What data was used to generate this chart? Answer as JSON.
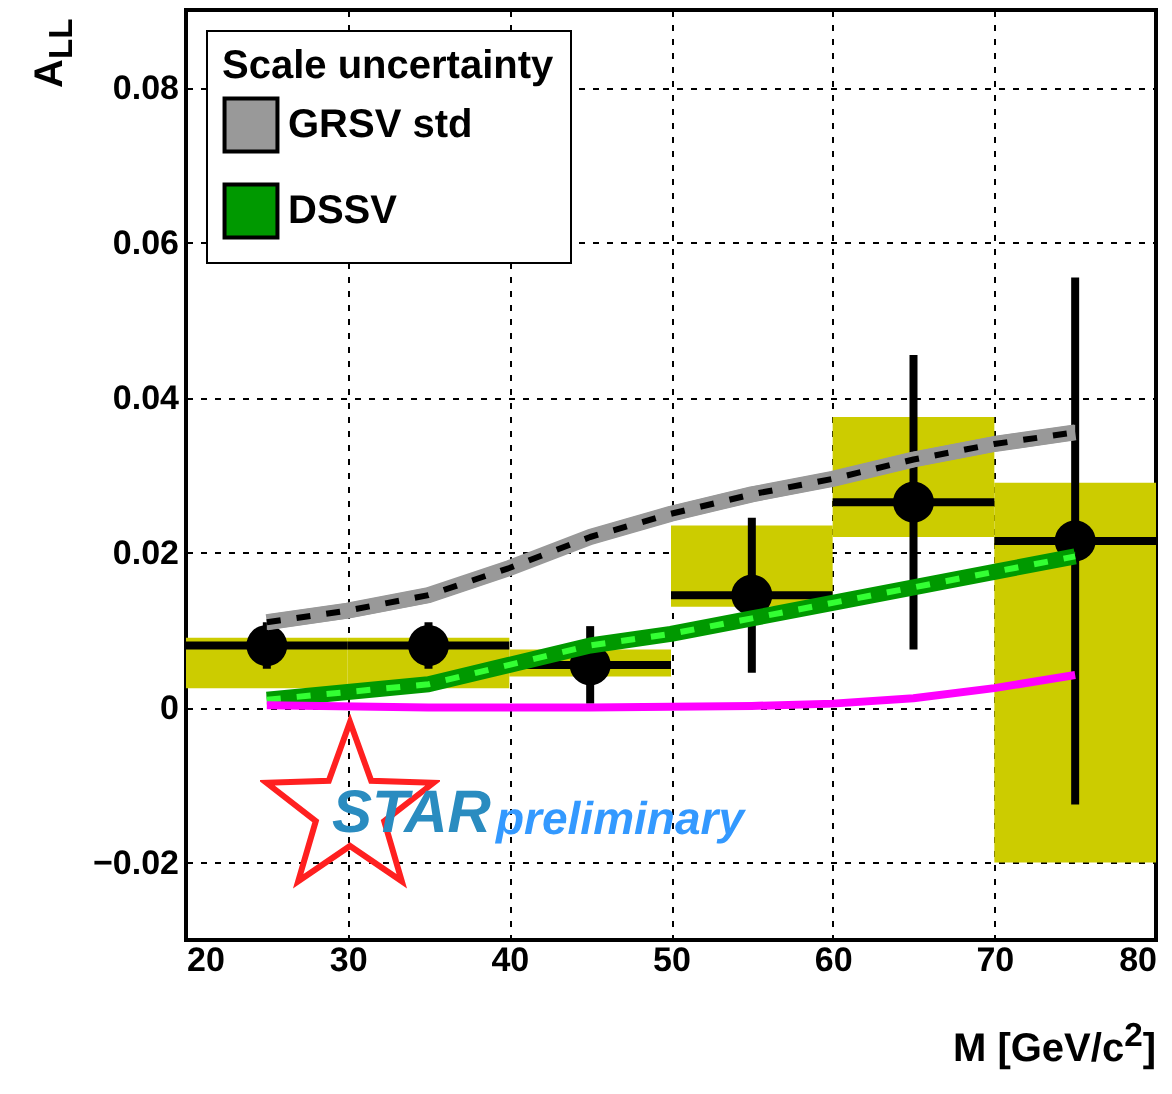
{
  "chart_data": {
    "type": "line",
    "xlabel": "M [GeV/c$^{2}$]",
    "ylabel": "A$_{LL}$",
    "legend_title": "Scale uncertainty",
    "xlim": [
      20,
      80
    ],
    "xticks": [
      20,
      30,
      40,
      50,
      60,
      70,
      80
    ],
    "ylim": [
      -0.03,
      0.09
    ],
    "yticks": [
      -0.02,
      0,
      0.02,
      0.04,
      0.06,
      0.08
    ],
    "grid": true,
    "legend": "top left",
    "annotations": [
      "STAR",
      "preliminary"
    ],
    "series": [
      {
        "type": "bar",
        "color": "#cccc00",
        "x": [
          25,
          35,
          45,
          55,
          65,
          75
        ],
        "base": [
          0.0025,
          0.0025,
          0.004,
          0.013,
          0.022,
          -0.02
        ],
        "values": [
          0.0065,
          0.0065,
          0.0035,
          0.0105,
          0.0155,
          0.049
        ]
      },
      {
        "name": "GRSV std",
        "color": "#999999",
        "x": [
          25,
          30,
          35,
          40,
          45,
          50,
          55,
          60,
          65,
          70,
          75
        ],
        "values": [
          0.011,
          0.0125,
          0.0145,
          0.018,
          0.022,
          0.025,
          0.0275,
          0.0295,
          0.032,
          0.034,
          0.0355
        ],
        "lower": [
          0.01,
          0.0115,
          0.0135,
          0.017,
          0.021,
          0.024,
          0.0265,
          0.0285,
          0.031,
          0.033,
          0.0345
        ],
        "upper": [
          0.012,
          0.0135,
          0.0155,
          0.019,
          0.023,
          0.026,
          0.0285,
          0.0305,
          0.033,
          0.035,
          0.0365
        ]
      },
      {
        "color": "#000000",
        "line_style": "dashed",
        "x": [
          25,
          30,
          35,
          40,
          45,
          50,
          55,
          60,
          65,
          70,
          75
        ],
        "values": [
          0.011,
          0.0125,
          0.0145,
          0.018,
          0.022,
          0.025,
          0.0275,
          0.0295,
          0.032,
          0.034,
          0.0355
        ]
      },
      {
        "name": "DSSV",
        "color": "#009900",
        "x": [
          25,
          30,
          35,
          40,
          45,
          50,
          55,
          60,
          65,
          70,
          75
        ],
        "values": [
          0.001,
          0.002,
          0.003,
          0.0055,
          0.008,
          0.0095,
          0.0115,
          0.0135,
          0.0155,
          0.0175,
          0.0195
        ],
        "lower": [
          0.0004,
          0.0014,
          0.0024,
          0.0049,
          0.0074,
          0.0089,
          0.0109,
          0.0129,
          0.0149,
          0.0169,
          0.0189
        ],
        "upper": [
          0.0016,
          0.0026,
          0.0036,
          0.0061,
          0.0086,
          0.0101,
          0.0121,
          0.0141,
          0.0161,
          0.0181,
          0.0201
        ]
      },
      {
        "color": "#33ff33",
        "line_style": "dashed",
        "x": [
          25,
          30,
          35,
          40,
          45,
          50,
          55,
          60,
          65,
          70,
          75
        ],
        "values": [
          0.001,
          0.002,
          0.003,
          0.0055,
          0.008,
          0.0095,
          0.0115,
          0.0135,
          0.0155,
          0.0175,
          0.0195
        ]
      },
      {
        "color": "#ff00ff",
        "x": [
          25,
          35,
          45,
          55,
          60,
          65,
          70,
          75
        ],
        "values": [
          0.0003,
          0,
          0,
          0.0002,
          0.0005,
          0.0012,
          0.0025,
          0.0042
        ]
      },
      {
        "type": "scatter",
        "color": "#000000",
        "marker": "circle",
        "x": [
          25,
          35,
          45,
          55,
          65,
          75
        ],
        "values": [
          0.008,
          0.008,
          0.0055,
          0.0145,
          0.0265,
          0.0215
        ],
        "errors": [
          0.003,
          0.003,
          0.005,
          0.01,
          0.019,
          0.034
        ],
        "xerrors": [
          5,
          5,
          5,
          5,
          5,
          5
        ]
      }
    ]
  }
}
